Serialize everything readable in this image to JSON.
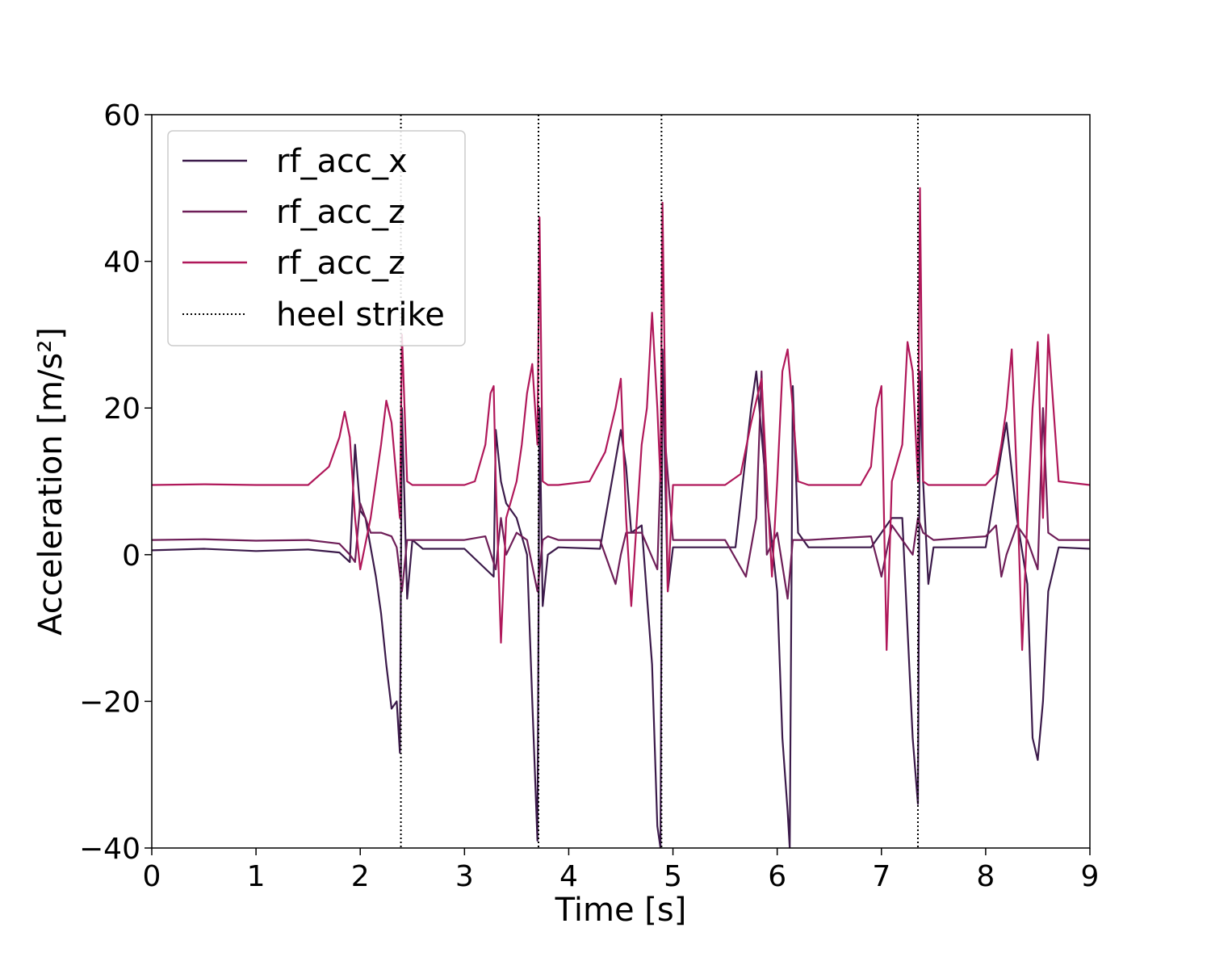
{
  "chart_data": {
    "type": "line",
    "xlabel": "Time [s]",
    "ylabel": "Acceleration [m/s²]",
    "xlim": [
      0,
      9
    ],
    "ylim": [
      -40,
      60
    ],
    "xticks": [
      "0",
      "1",
      "2",
      "3",
      "4",
      "5",
      "6",
      "7",
      "8",
      "9"
    ],
    "yticks": [
      "−40",
      "−20",
      "0",
      "20",
      "40",
      "60"
    ],
    "grid": false,
    "legend_position": "top-left",
    "series": [
      {
        "name": "rf_acc_x",
        "color": "#3b1a4a",
        "x": [
          0,
          0.5,
          1.0,
          1.5,
          1.8,
          1.9,
          1.95,
          2.0,
          2.05,
          2.1,
          2.15,
          2.2,
          2.25,
          2.3,
          2.35,
          2.38,
          2.4,
          2.45,
          2.5,
          2.6,
          3.0,
          3.28,
          3.3,
          3.35,
          3.4,
          3.5,
          3.6,
          3.65,
          3.7,
          3.72,
          3.75,
          3.8,
          3.9,
          4.3,
          4.5,
          4.55,
          4.6,
          4.7,
          4.8,
          4.85,
          4.88,
          4.9,
          4.95,
          5.0,
          5.1,
          5.6,
          5.75,
          5.8,
          5.9,
          6.0,
          6.05,
          6.1,
          6.12,
          6.15,
          6.2,
          6.3,
          6.9,
          7.1,
          7.2,
          7.3,
          7.35,
          7.37,
          7.4,
          7.45,
          7.5,
          8.0,
          8.15,
          8.2,
          8.3,
          8.4,
          8.45,
          8.5,
          8.55,
          8.6,
          8.7,
          9.0
        ],
        "y": [
          0.6,
          0.8,
          0.5,
          0.7,
          0.3,
          -1.0,
          15.0,
          6.0,
          5.0,
          1.0,
          -3.0,
          -8.0,
          -15.0,
          -21.0,
          -20.0,
          -27.0,
          20.0,
          -6.0,
          2.0,
          0.8,
          0.8,
          -3.0,
          17.0,
          10.0,
          7.0,
          5.0,
          0.0,
          -20.0,
          -39.0,
          20.0,
          -7.0,
          0.0,
          1.0,
          0.8,
          17.0,
          12.0,
          3.0,
          4.0,
          -15.0,
          -37.0,
          -40.0,
          28.0,
          -5.0,
          1.0,
          1.0,
          1.0,
          20.0,
          25.0,
          8.0,
          -5.0,
          -25.0,
          -35.0,
          -40.0,
          23.0,
          3.0,
          1.0,
          1.0,
          5.0,
          5.0,
          -25.0,
          -34.0,
          25.0,
          10.0,
          -4.0,
          1.0,
          1.0,
          14.0,
          18.0,
          5.0,
          -4.0,
          -25.0,
          -28.0,
          -20.0,
          -5.0,
          1.0,
          0.8
        ]
      },
      {
        "name": "rf_acc_z",
        "color": "#6e1e58",
        "x": [
          0,
          0.5,
          1.0,
          1.5,
          1.8,
          1.9,
          1.95,
          2.0,
          2.1,
          2.2,
          2.3,
          2.35,
          2.4,
          2.45,
          2.5,
          2.6,
          3.0,
          3.2,
          3.3,
          3.35,
          3.4,
          3.5,
          3.6,
          3.7,
          3.75,
          3.8,
          3.9,
          4.3,
          4.45,
          4.5,
          4.55,
          4.7,
          4.85,
          4.9,
          5.0,
          5.5,
          5.7,
          5.8,
          5.85,
          5.9,
          6.0,
          6.1,
          6.15,
          6.2,
          6.3,
          6.9,
          7.0,
          7.1,
          7.3,
          7.35,
          7.4,
          7.5,
          8.0,
          8.1,
          8.15,
          8.2,
          8.3,
          8.4,
          8.5,
          8.55,
          8.6,
          8.7,
          9.0
        ],
        "y": [
          2.0,
          2.1,
          1.9,
          2.0,
          1.5,
          0.0,
          -1.0,
          7.0,
          3.0,
          3.0,
          2.5,
          1.0,
          -5.0,
          2.0,
          2.0,
          2.0,
          2.0,
          2.5,
          -2.0,
          5.0,
          0.0,
          3.0,
          2.0,
          -5.0,
          2.0,
          2.5,
          2.0,
          2.0,
          -4.0,
          0.0,
          3.0,
          3.0,
          -2.0,
          20.0,
          2.0,
          2.0,
          -3.0,
          5.0,
          25.0,
          0.0,
          3.0,
          -6.0,
          2.0,
          2.0,
          2.0,
          2.5,
          -3.0,
          4.0,
          0.0,
          5.0,
          3.0,
          2.0,
          2.5,
          4.0,
          -3.0,
          0.0,
          4.0,
          2.0,
          -2.0,
          20.0,
          3.0,
          2.0,
          2.0
        ]
      },
      {
        "name": "rf_acc_z",
        "color": "#b0185a",
        "x": [
          0,
          0.5,
          1.0,
          1.5,
          1.7,
          1.8,
          1.85,
          1.9,
          1.95,
          2.0,
          2.1,
          2.2,
          2.25,
          2.3,
          2.35,
          2.38,
          2.4,
          2.45,
          2.5,
          2.6,
          3.0,
          3.1,
          3.2,
          3.25,
          3.28,
          3.3,
          3.35,
          3.4,
          3.5,
          3.55,
          3.6,
          3.65,
          3.7,
          3.72,
          3.75,
          3.8,
          3.9,
          4.2,
          4.35,
          4.45,
          4.5,
          4.55,
          4.6,
          4.7,
          4.75,
          4.8,
          4.85,
          4.88,
          4.9,
          4.95,
          5.0,
          5.5,
          5.65,
          5.75,
          5.85,
          5.9,
          5.95,
          6.0,
          6.05,
          6.1,
          6.15,
          6.2,
          6.3,
          6.8,
          6.9,
          6.95,
          7.0,
          7.05,
          7.1,
          7.2,
          7.25,
          7.3,
          7.35,
          7.37,
          7.4,
          7.45,
          7.5,
          8.0,
          8.1,
          8.15,
          8.2,
          8.25,
          8.3,
          8.35,
          8.4,
          8.45,
          8.5,
          8.55,
          8.6,
          8.7,
          9.0
        ],
        "y": [
          9.5,
          9.6,
          9.5,
          9.5,
          12.0,
          16.0,
          19.5,
          16.0,
          5.0,
          -2.0,
          5.0,
          15.0,
          21.0,
          18.0,
          10.0,
          5.0,
          30.0,
          10.0,
          9.5,
          9.5,
          9.5,
          10.0,
          15.0,
          22.0,
          23.0,
          10.0,
          -12.0,
          5.0,
          10.0,
          15.0,
          22.0,
          26.0,
          15.0,
          46.0,
          10.0,
          9.5,
          9.5,
          10.0,
          14.0,
          20.0,
          24.0,
          5.0,
          -7.0,
          15.0,
          20.0,
          33.0,
          20.0,
          10.0,
          48.0,
          -5.0,
          9.5,
          9.5,
          11.0,
          18.0,
          24.0,
          10.0,
          -3.0,
          10.0,
          25.0,
          28.0,
          20.0,
          10.0,
          9.5,
          9.5,
          12.0,
          20.0,
          23.0,
          -13.0,
          10.0,
          15.0,
          29.0,
          25.0,
          10.0,
          50.0,
          10.0,
          9.5,
          9.5,
          9.5,
          11.0,
          15.0,
          20.0,
          28.0,
          10.0,
          -13.0,
          5.0,
          20.0,
          29.0,
          5.0,
          30.0,
          10.0,
          9.5
        ]
      }
    ],
    "heel_strike": {
      "name": "heel strike",
      "color": "#000000",
      "x": [
        2.39,
        3.71,
        4.89,
        7.35
      ]
    }
  }
}
